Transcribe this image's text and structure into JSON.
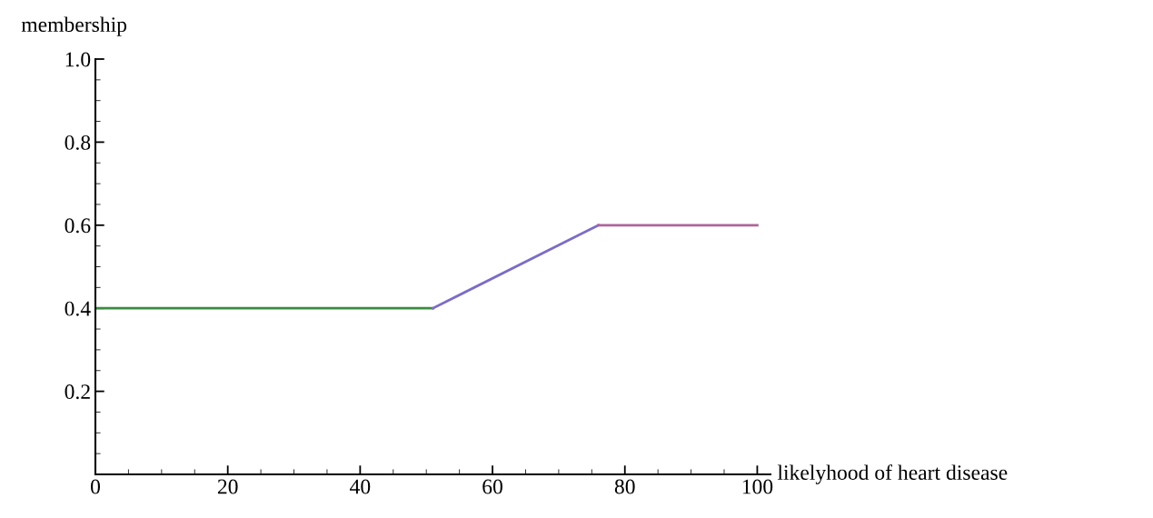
{
  "chart_data": {
    "type": "line",
    "xlabel": "likelyhood of heart disease",
    "ylabel": "membership",
    "series": [
      {
        "x": [
          0,
          51
        ],
        "values": [
          0.4,
          0.4
        ],
        "color": "#3a8c3f"
      },
      {
        "x": [
          51,
          76
        ],
        "values": [
          0.4,
          0.6
        ],
        "color": "#7d6cc4"
      },
      {
        "x": [
          76,
          100
        ],
        "values": [
          0.6,
          0.6
        ],
        "color": "#b0639a"
      }
    ],
    "xlim": [
      0,
      102
    ],
    "ylim": [
      0,
      1
    ],
    "xticks": [
      0,
      20,
      40,
      60,
      80,
      100
    ],
    "yticks": [
      {
        "value": 0,
        "label": null
      },
      0.2,
      0.4,
      0.6,
      0.8,
      {
        "value": 1,
        "label": "1.0"
      }
    ],
    "grid": false,
    "legend": false,
    "marker": "none",
    "line_style": "solid"
  }
}
